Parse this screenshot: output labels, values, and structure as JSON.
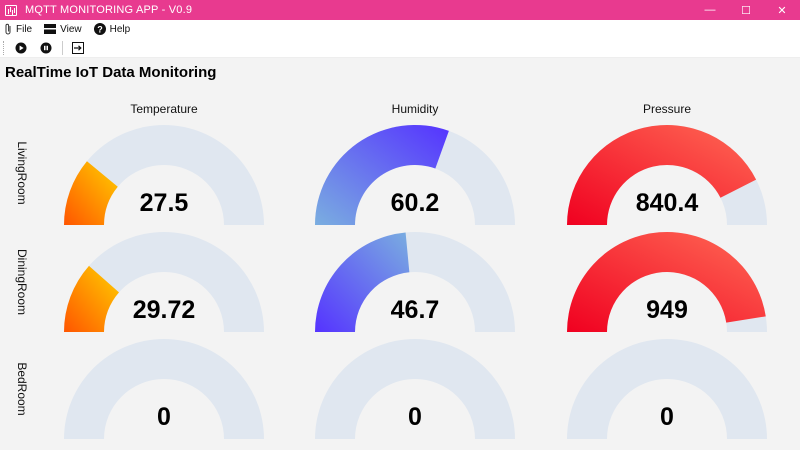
{
  "window": {
    "title": "MQTT MONITORING APP - V0.9",
    "minimize_glyph": "—",
    "maximize_glyph": "☐",
    "close_glyph": "✕"
  },
  "menu": {
    "items": [
      {
        "label": "File",
        "icon": "paperclip-icon"
      },
      {
        "label": "View",
        "icon": "panel-icon"
      },
      {
        "label": "Help",
        "icon": "help-circle-icon"
      }
    ]
  },
  "toolbar": {
    "buttons": [
      {
        "name": "play-button",
        "icon": "play-icon"
      },
      {
        "name": "pause-button",
        "icon": "pause-icon"
      },
      {
        "name": "exit-button",
        "icon": "exit-icon"
      }
    ]
  },
  "dashboard": {
    "heading": "RealTime IoT Data Monitoring",
    "columns": [
      "Temperature",
      "Humidity",
      "Pressure"
    ],
    "rows": [
      "LivingRoom",
      "DiningRoom",
      "BedRoom"
    ],
    "track_color": "#e0e7f0",
    "gauges": [
      [
        {
          "value": "27.5",
          "fraction": 0.22,
          "gradient": [
            "#ff5500",
            "#ffd000"
          ]
        },
        {
          "value": "60.2",
          "fraction": 0.61,
          "gradient": [
            "#7aaee0",
            "#5533ff"
          ]
        },
        {
          "value": "840.4",
          "fraction": 0.85,
          "gradient": [
            "#f00020",
            "#ff6a55"
          ]
        }
      ],
      [
        {
          "value": "29.72",
          "fraction": 0.23,
          "gradient": [
            "#ff5500",
            "#ffd000"
          ]
        },
        {
          "value": "46.7",
          "fraction": 0.47,
          "gradient": [
            "#5533ff",
            "#7aaee0"
          ]
        },
        {
          "value": "949",
          "fraction": 0.95,
          "gradient": [
            "#f00020",
            "#ff6a55"
          ]
        }
      ],
      [
        {
          "value": "0",
          "fraction": 0,
          "gradient": [
            "#e0e7f0",
            "#e0e7f0"
          ]
        },
        {
          "value": "0",
          "fraction": 0,
          "gradient": [
            "#e0e7f0",
            "#e0e7f0"
          ]
        },
        {
          "value": "0",
          "fraction": 0,
          "gradient": [
            "#e0e7f0",
            "#e0e7f0"
          ]
        }
      ]
    ]
  }
}
